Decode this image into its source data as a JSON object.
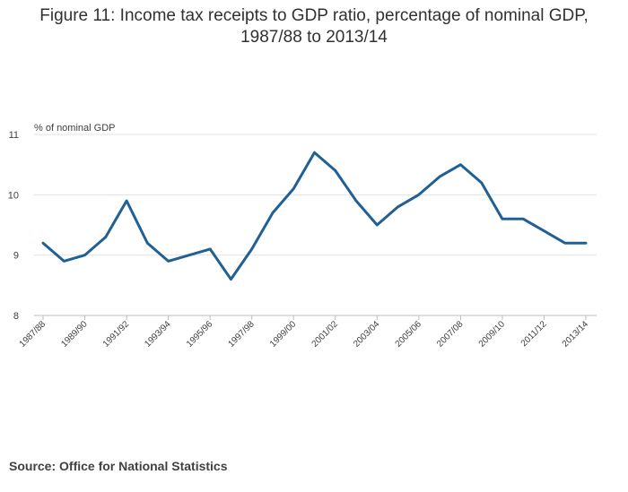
{
  "chart_data": {
    "type": "line",
    "title_line1": "Figure 11: Income tax receipts to GDP ratio, percentage of nominal GDP,",
    "title_line2": "1987/88 to 2013/14",
    "ylabel": "% of nominal GDP",
    "ylim": [
      8,
      11
    ],
    "yticks": [
      8,
      9,
      10,
      11
    ],
    "categories": [
      "1987/88",
      "1988/89",
      "1989/90",
      "1990/91",
      "1991/92",
      "1992/93",
      "1993/94",
      "1994/95",
      "1995/96",
      "1996/97",
      "1997/98",
      "1998/99",
      "1999/00",
      "2000/01",
      "2001/02",
      "2002/03",
      "2003/04",
      "2004/05",
      "2005/06",
      "2006/07",
      "2007/08",
      "2008/09",
      "2009/10",
      "2010/11",
      "2011/12",
      "2012/13",
      "2013/14"
    ],
    "tick_labels": [
      "1987/88",
      "1989/90",
      "1991/92",
      "1993/94",
      "1995/96",
      "1997/98",
      "1999/00",
      "2001/02",
      "2003/04",
      "2005/06",
      "2007/08",
      "2009/10",
      "2011/12",
      "2013/14"
    ],
    "series": [
      {
        "name": "Income tax receipts to GDP ratio",
        "values": [
          9.2,
          8.9,
          9.0,
          9.3,
          9.9,
          9.2,
          8.9,
          9.0,
          9.1,
          8.6,
          9.1,
          9.7,
          10.1,
          10.7,
          10.4,
          9.9,
          9.5,
          9.8,
          10.0,
          10.3,
          10.5,
          10.2,
          9.6,
          9.6,
          9.4,
          9.2,
          9.2
        ],
        "color": "#206095"
      }
    ],
    "grid": true
  },
  "source": "Source: Office for National Statistics"
}
